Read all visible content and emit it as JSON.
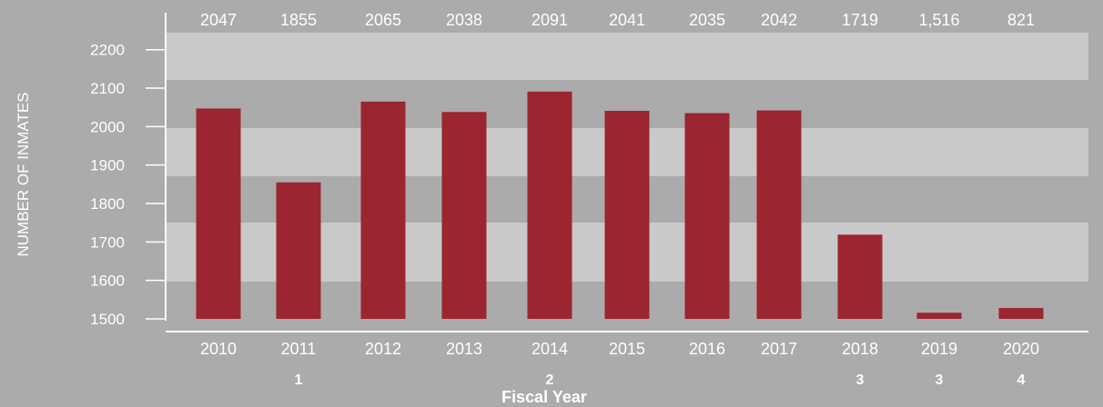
{
  "chart_data": {
    "type": "bar",
    "categories": [
      "2010",
      "2011",
      "2012",
      "2013",
      "2014",
      "2015",
      "2016",
      "2017",
      "2018",
      "2019",
      "2020"
    ],
    "values": [
      2047,
      1855,
      2065,
      2038,
      2091,
      2041,
      2035,
      2042,
      1719,
      1516,
      821
    ],
    "data_labels": [
      "2047",
      "1855",
      "2065",
      "2038",
      "2091",
      "2041",
      "2035",
      "2042",
      "1719",
      "1,516",
      "821"
    ],
    "footnotes": [
      "",
      "1",
      "",
      "",
      "2",
      "",
      "",
      "",
      "3",
      "3",
      "4"
    ],
    "xlabel": "Fiscal Year",
    "ylabel": "NUMBER OF INMATES",
    "y_ticks": [
      1500,
      1600,
      1700,
      1800,
      1900,
      2000,
      2100,
      2200
    ],
    "ylim": [
      1500,
      2200
    ],
    "grid": false,
    "colors": {
      "bar": "#9b2530",
      "background": "#ababab",
      "band_light": "#c9c9c9",
      "text": "#ffffff",
      "axis": "#ffffff"
    }
  }
}
